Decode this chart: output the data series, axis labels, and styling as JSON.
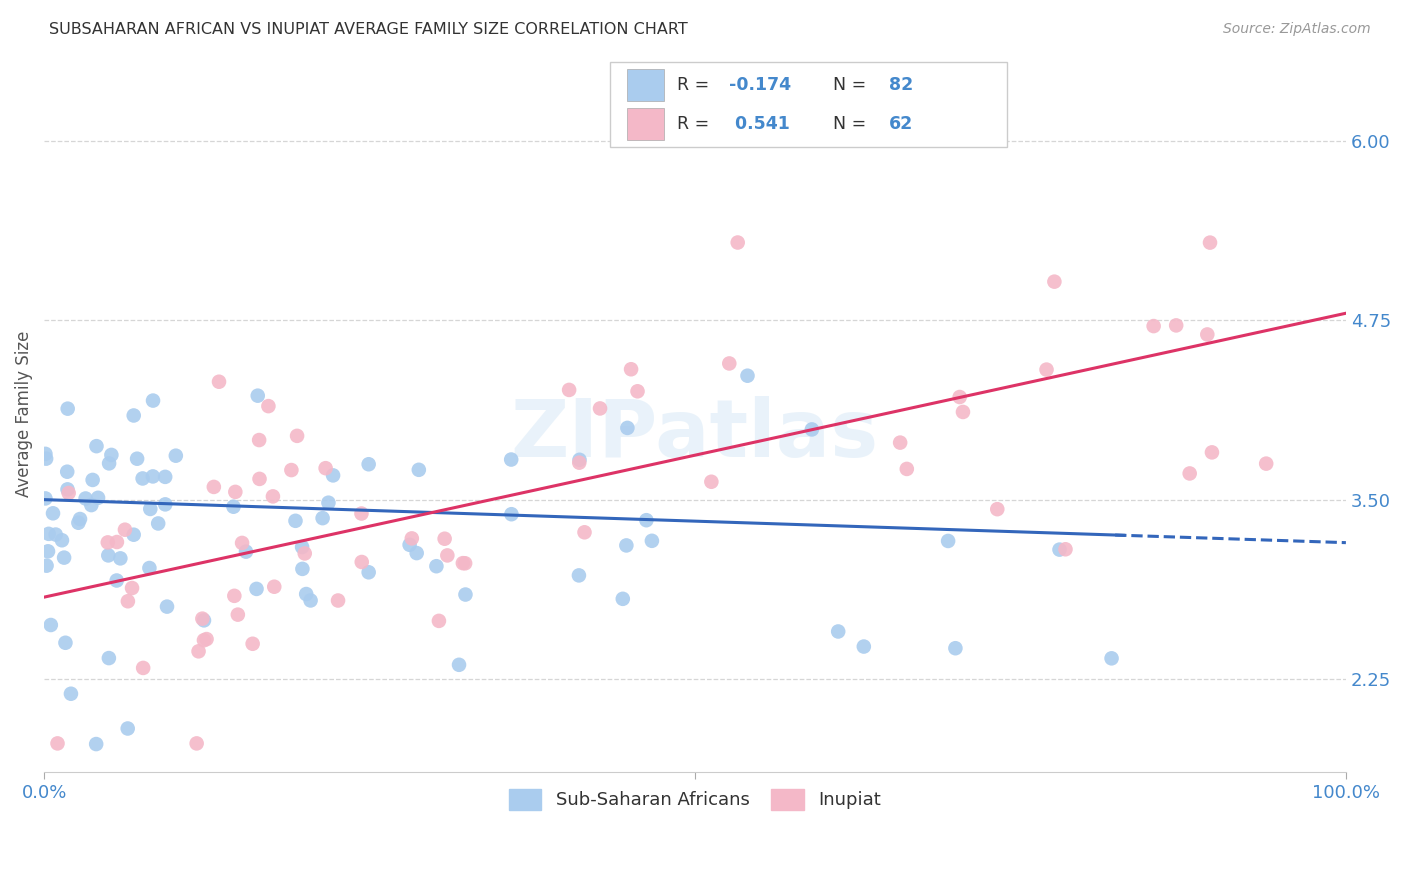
{
  "title": "SUBSAHARAN AFRICAN VS INUPIAT AVERAGE FAMILY SIZE CORRELATION CHART",
  "source": "Source: ZipAtlas.com",
  "ylabel": "Average Family Size",
  "xlim": [
    0,
    1
  ],
  "ylim": [
    1.6,
    6.6
  ],
  "yticks": [
    2.25,
    3.5,
    4.75,
    6.0
  ],
  "background_color": "#ffffff",
  "grid_color": "#cccccc",
  "title_color": "#333333",
  "axis_label_color": "#4488cc",
  "blue_scatter_color": "#aaccee",
  "pink_scatter_color": "#f4b8c8",
  "blue_line_color": "#3366bb",
  "pink_line_color": "#dd3366",
  "label1": "Sub-Saharan Africans",
  "label2": "Inupiat",
  "blue_R": -0.174,
  "blue_N": 82,
  "pink_R": 0.541,
  "pink_N": 62,
  "blue_intercept": 3.5,
  "blue_slope": -0.3,
  "pink_intercept": 2.82,
  "pink_slope": 1.98,
  "watermark": "ZIPatlas"
}
